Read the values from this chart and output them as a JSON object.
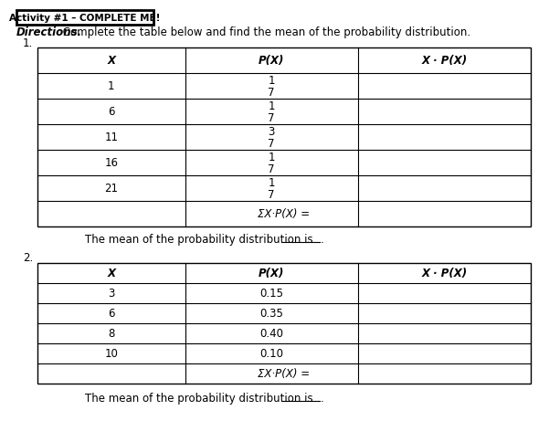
{
  "header_box_text": "Activity #1 – COMPLETE ME!",
  "directions_italic": "Directions.",
  "directions_rest": " Complete the table below and find the mean of the probability distribution.",
  "table1": {
    "number": "1.",
    "headers": [
      "X",
      "P(X)",
      "X · P(X)"
    ],
    "rows": [
      [
        "1",
        [
          "1",
          "7"
        ],
        ""
      ],
      [
        "6",
        [
          "1",
          "7"
        ],
        ""
      ],
      [
        "11",
        [
          "3",
          "7"
        ],
        ""
      ],
      [
        "16",
        [
          "1",
          "7"
        ],
        ""
      ],
      [
        "21",
        [
          "1",
          "7"
        ],
        ""
      ]
    ],
    "sum_label": "ΣX·P(X) ="
  },
  "mean_line1": "The mean of the probability distribution is",
  "table2": {
    "number": "2.",
    "headers": [
      "X",
      "P(X)",
      "X · P(X)"
    ],
    "rows": [
      [
        "3",
        "0.15",
        ""
      ],
      [
        "6",
        "0.35",
        ""
      ],
      [
        "8",
        "0.40",
        ""
      ],
      [
        "10",
        "0.10",
        ""
      ]
    ],
    "sum_label": "ΣX·P(X) ="
  },
  "mean_line2": "The mean of the probability distribution is",
  "bg_color": "#ffffff",
  "text_color": "#000000"
}
